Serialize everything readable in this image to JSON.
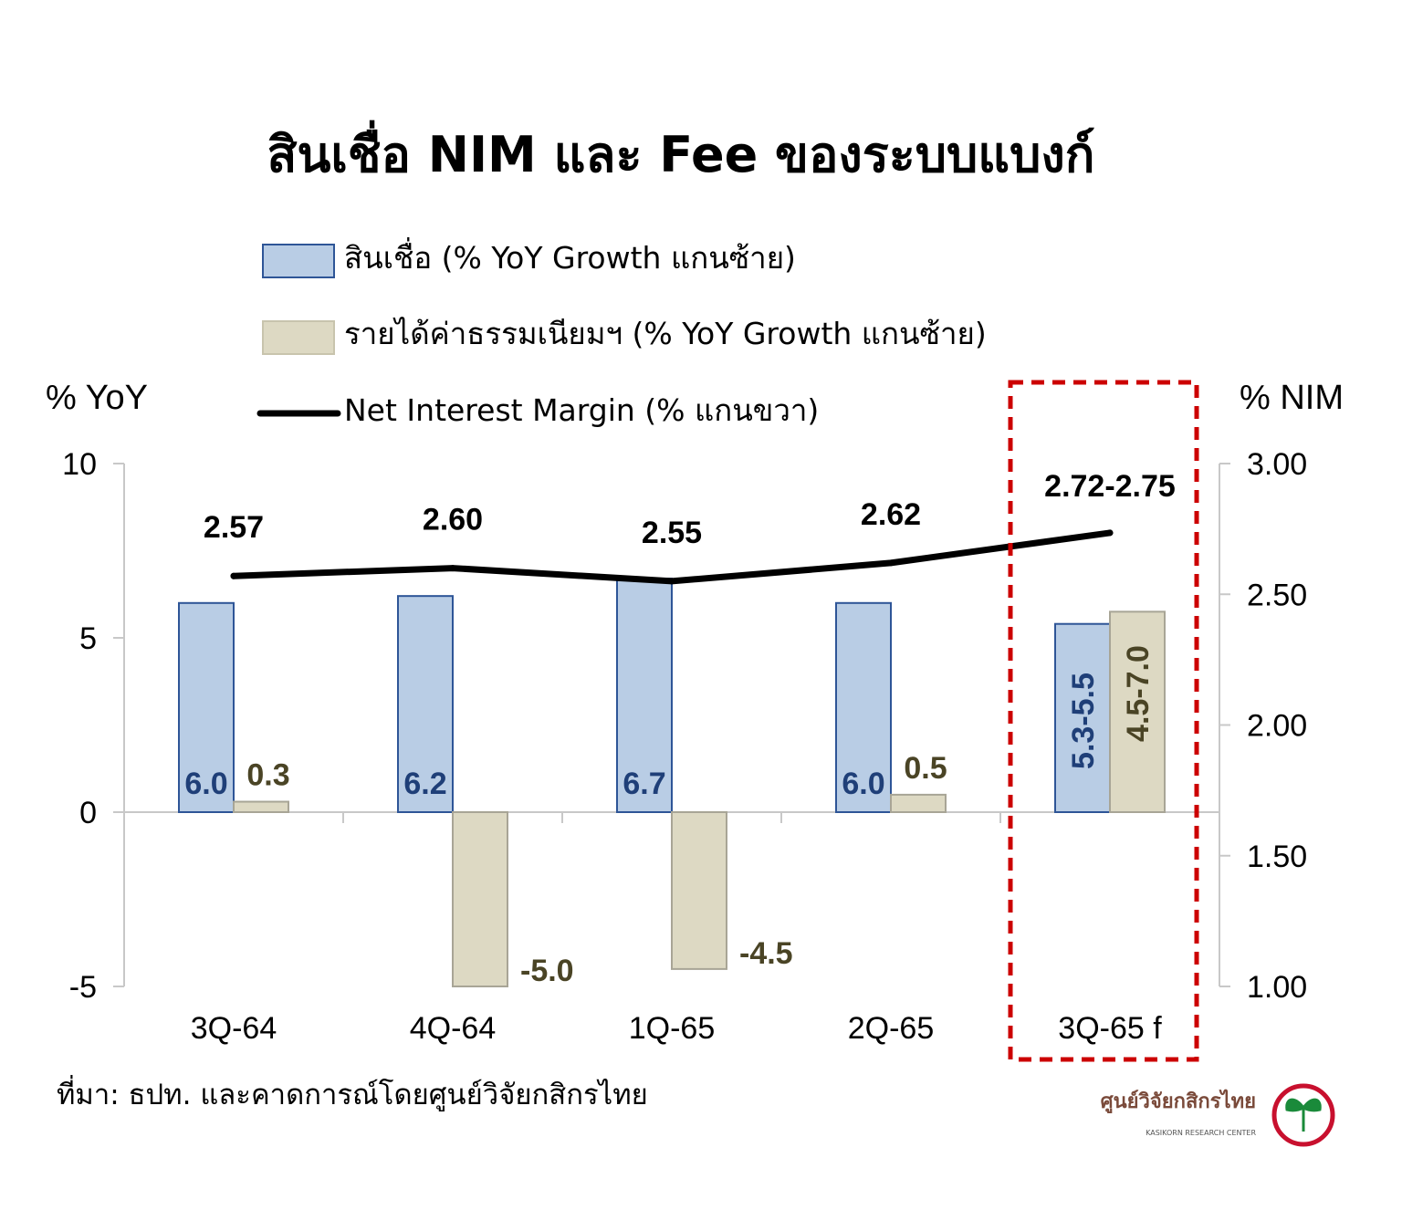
{
  "title": "สินเชื่อ NIM และ Fee ของระบบแบงก์",
  "legend": {
    "loans": "สินเชื่อ (% YoY Growth แกนซ้าย)",
    "fees": "รายได้ค่าธรรมเนียมฯ (% YoY Growth แกนซ้าย)",
    "nim": "Net Interest Margin (% แกนขวา)"
  },
  "y_left_title": "% YoY",
  "y_right_title": "% NIM",
  "source": "ที่มา: ธปท. และคาดการณ์โดยศูนย์วิจัยกสิกรไทย",
  "logo": {
    "name": "ศูนย์วิจัยกสิกรไทย",
    "sub": "KASIKORN RESEARCH CENTER"
  },
  "colors": {
    "loans_fill": "#b9cde5",
    "loans_stroke": "#2e5597",
    "loans_label": "#1f3f78",
    "fees_fill": "#ddd9c3",
    "fees_stroke": "#a8a596",
    "fees_label": "#4a4425",
    "nim_line": "#000000",
    "highlight_box": "#cc0000"
  },
  "chart_data": {
    "type": "bar",
    "categories": [
      "3Q-64",
      "4Q-64",
      "1Q-65",
      "2Q-65",
      "3Q-65 f"
    ],
    "series": [
      {
        "name": "สินเชื่อ (% YoY Growth แกนซ้าย)",
        "axis": "left",
        "type": "bar",
        "values": [
          6.0,
          6.2,
          6.7,
          6.0,
          5.4
        ],
        "labels": [
          "6.0",
          "6.2",
          "6.7",
          "6.0",
          "5.3-5.5"
        ]
      },
      {
        "name": "รายได้ค่าธรรมเนียมฯ (% YoY Growth แกนซ้าย)",
        "axis": "left",
        "type": "bar",
        "values": [
          0.3,
          -5.0,
          -4.5,
          0.5,
          5.75
        ],
        "labels": [
          "0.3",
          "-5.0",
          "-4.5",
          "0.5",
          "4.5-7.0"
        ]
      },
      {
        "name": "Net Interest Margin (% แกนขวา)",
        "axis": "right",
        "type": "line",
        "values": [
          2.57,
          2.6,
          2.55,
          2.62,
          2.735
        ],
        "labels": [
          "2.57",
          "2.60",
          "2.55",
          "2.62",
          "2.72-2.75"
        ]
      }
    ],
    "y_left": {
      "min": -5,
      "max": 10,
      "ticks": [
        "-5",
        "0",
        "5",
        "10"
      ]
    },
    "y_right": {
      "min": 1.0,
      "max": 3.0,
      "ticks": [
        "1.00",
        "1.50",
        "2.00",
        "2.50",
        "3.00"
      ]
    },
    "highlighted_category": "3Q-65 f",
    "legend_position": "top"
  }
}
